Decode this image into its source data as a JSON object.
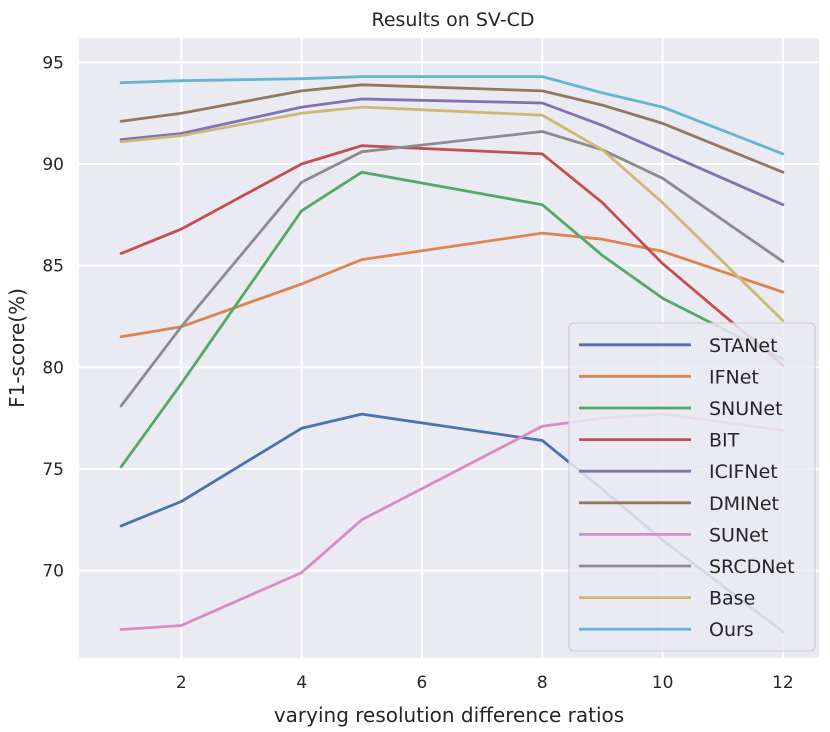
{
  "chart_data": {
    "type": "line",
    "title": "Results on SV-CD",
    "xlabel": "varying resolution difference ratios",
    "ylabel": "F1-score(%)",
    "xlim": [
      0.3,
      12.6
    ],
    "ylim": [
      65.7,
      96.2
    ],
    "xticks": [
      2,
      4,
      6,
      8,
      10,
      12
    ],
    "yticks": [
      70,
      75,
      80,
      85,
      90,
      95
    ],
    "x": [
      1,
      2,
      4,
      5,
      8,
      9,
      10,
      12
    ],
    "grid": true,
    "legend_position": "lower-right",
    "series": [
      {
        "name": "STANet",
        "color": "#4c72b0",
        "values": [
          72.2,
          73.4,
          77.0,
          77.7,
          76.4,
          74.0,
          71.5,
          67.0
        ]
      },
      {
        "name": "IFNet",
        "color": "#dd8452",
        "values": [
          81.5,
          82.0,
          84.1,
          85.3,
          86.6,
          86.3,
          85.7,
          83.7
        ]
      },
      {
        "name": "SNUNet",
        "color": "#55a868",
        "values": [
          75.1,
          79.2,
          87.7,
          89.6,
          88.0,
          85.5,
          83.4,
          80.4
        ]
      },
      {
        "name": "BIT",
        "color": "#c44e52",
        "values": [
          85.6,
          86.8,
          90.0,
          90.9,
          90.5,
          88.1,
          85.1,
          80.1
        ]
      },
      {
        "name": "ICIFNet",
        "color": "#8172b3",
        "values": [
          91.2,
          91.5,
          92.8,
          93.2,
          93.0,
          91.9,
          90.6,
          88.0
        ]
      },
      {
        "name": "DMINet",
        "color": "#937860",
        "values": [
          92.1,
          92.5,
          93.6,
          93.9,
          93.6,
          92.9,
          92.0,
          89.6
        ]
      },
      {
        "name": "SUNet",
        "color": "#da8bc3",
        "values": [
          67.1,
          67.3,
          69.9,
          72.5,
          77.1,
          77.5,
          77.7,
          76.9
        ]
      },
      {
        "name": "SRCDNet",
        "color": "#8c8c8c",
        "values": [
          78.1,
          82.0,
          89.1,
          90.6,
          91.6,
          90.7,
          89.3,
          85.2
        ]
      },
      {
        "name": "Base",
        "color": "#ccb974",
        "values": [
          91.1,
          91.4,
          92.5,
          92.8,
          92.4,
          90.7,
          88.1,
          82.3
        ]
      },
      {
        "name": "Ours",
        "color": "#64b5cd",
        "values": [
          94.0,
          94.1,
          94.2,
          94.3,
          94.3,
          93.5,
          92.8,
          90.5
        ]
      }
    ]
  }
}
